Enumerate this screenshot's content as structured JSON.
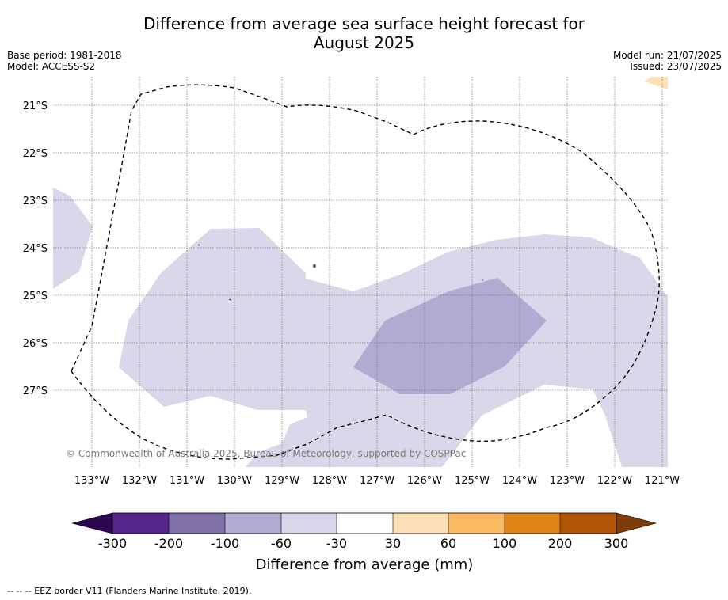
{
  "title_line1": "Difference from average sea surface height forecast for",
  "title_line2": "August 2025",
  "base_period": "Base period: 1981-2018",
  "model": "Model: ACCESS-S2",
  "model_run": "Model run: 21/07/2025",
  "issued": "Issued: 23/07/2025",
  "copyright": "© Commonwealth of Australia 2025, Bureau of Meteorology, supported by COSPPac",
  "map": {
    "lat_labels": [
      "21°S",
      "22°S",
      "23°S",
      "24°S",
      "25°S",
      "26°S",
      "27°S"
    ],
    "lon_labels": [
      "133°W",
      "132°W",
      "131°W",
      "130°W",
      "129°W",
      "128°W",
      "127°W",
      "126°W",
      "125°W",
      "124°W",
      "123°W",
      "122°W",
      "121°W"
    ],
    "anomaly_colors": {
      "minus_60_to_minus_30": "#d9d8ea",
      "minus_100_to_minus_60": "#b1aad1",
      "30_to_60": "#fde0b5"
    }
  },
  "colorbar": {
    "label": "Difference from average (mm)",
    "ticks": [
      "-300",
      "-200",
      "-100",
      "-60",
      "-30",
      "30",
      "60",
      "100",
      "200",
      "300"
    ],
    "colors": [
      "#55268a",
      "#8071ab",
      "#b1aad1",
      "#d9d8ea",
      "#ffffff",
      "#fde0b5",
      "#fbb862",
      "#e08318",
      "#b25708"
    ],
    "extend_low_color": "#2d0650",
    "extend_high_color": "#7f3b08"
  },
  "footnote": "--  --  -- EEZ border V11 (Flanders Marine Institute, 2019)."
}
